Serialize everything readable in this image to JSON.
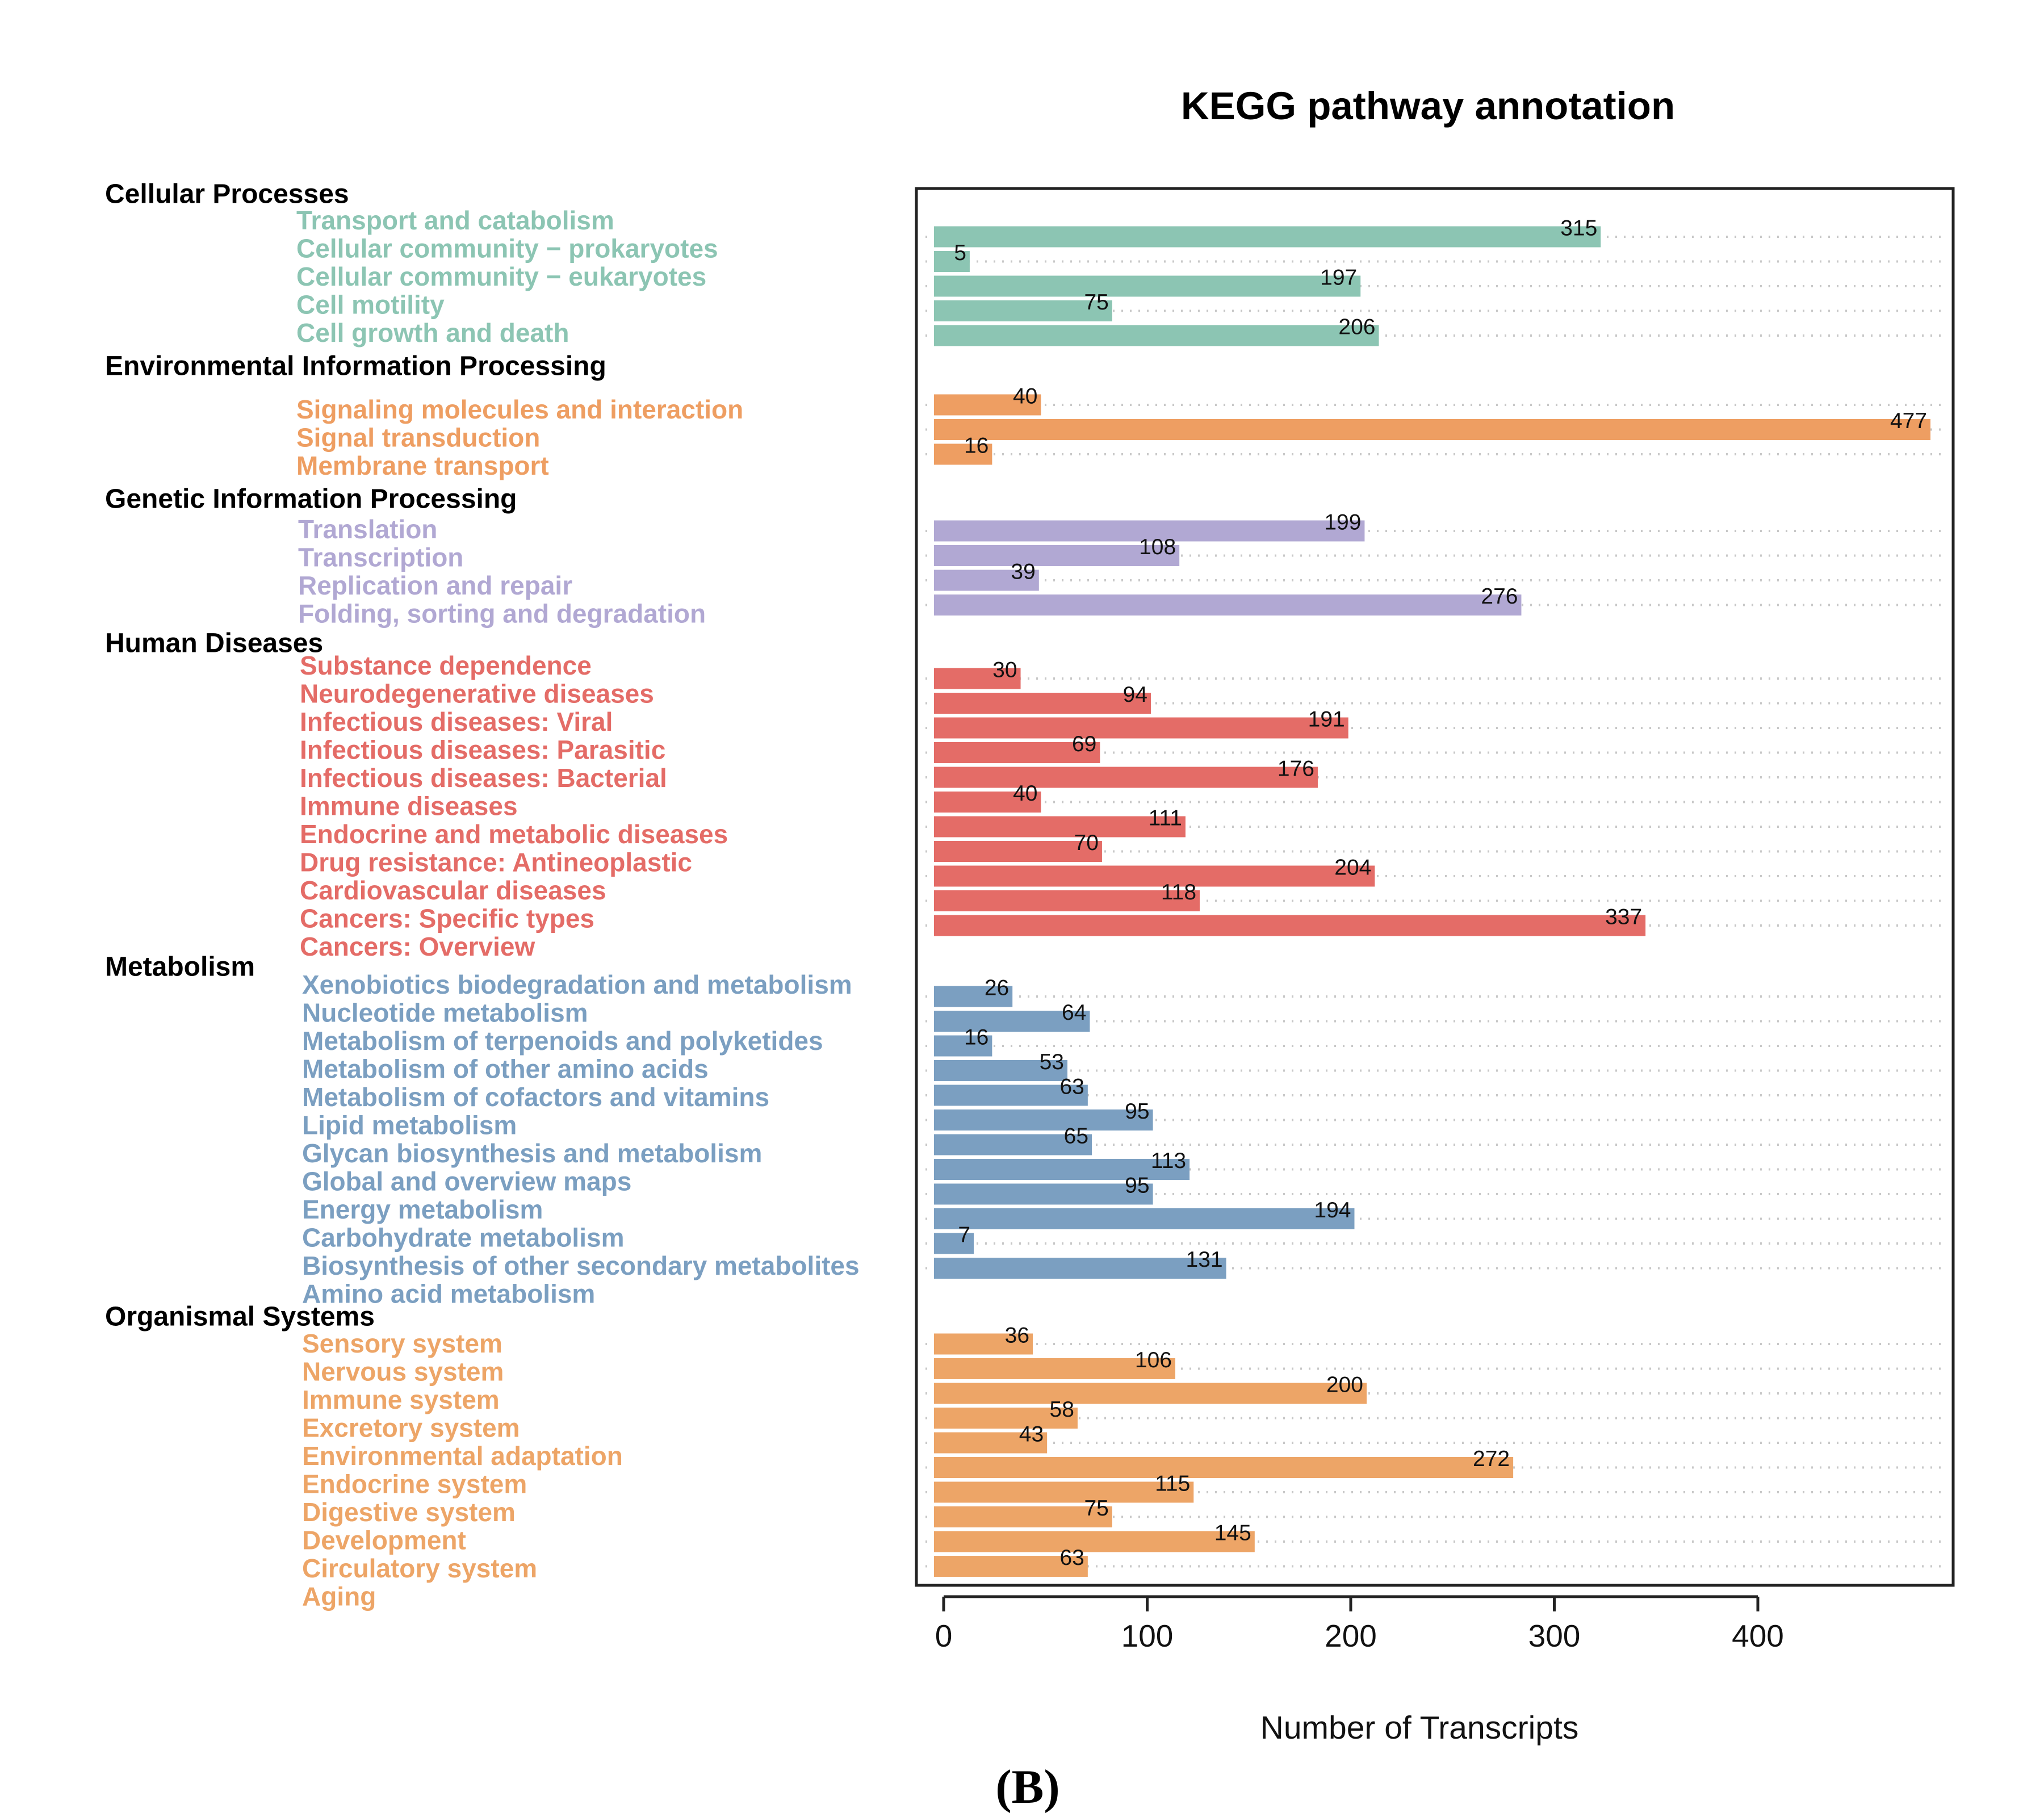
{
  "chart_data": {
    "type": "bar",
    "orientation": "horizontal",
    "title": "KEGG pathway annotation",
    "xlabel": "Number of Transcripts",
    "xlim": [
      0,
      480
    ],
    "xticks": [
      0,
      100,
      200,
      300,
      400
    ],
    "grid": "dotted horizontal",
    "caption": "(B)",
    "groups": [
      {
        "name": "Cellular Processes",
        "color": "#8cc5b3",
        "categories": [
          "Transport and catabolism",
          "Cellular community − prokaryotes",
          "Cellular community − eukaryotes",
          "Cell motility",
          "Cell growth and death"
        ],
        "values": [
          315,
          5,
          197,
          75,
          206
        ]
      },
      {
        "name": "Environmental Information Processing",
        "color": "#ee9e62",
        "categories": [
          "Signaling molecules and interaction",
          "Signal transduction",
          "Membrane transport"
        ],
        "values": [
          40,
          477,
          16
        ]
      },
      {
        "name": "Genetic Information Processing",
        "color": "#b1a8d3",
        "categories": [
          "Translation",
          "Transcription",
          "Replication and repair",
          "Folding, sorting and degradation"
        ],
        "values": [
          199,
          108,
          39,
          276
        ]
      },
      {
        "name": "Human Diseases",
        "color": "#e46c67",
        "categories": [
          "Substance dependence",
          "Neurodegenerative diseases",
          "Infectious diseases: Viral",
          "Infectious diseases: Parasitic",
          "Infectious diseases: Bacterial",
          "Immune diseases",
          "Endocrine and metabolic diseases",
          "Drug resistance: Antineoplastic",
          "Cardiovascular diseases",
          "Cancers: Specific types",
          "Cancers: Overview"
        ],
        "values": [
          30,
          94,
          191,
          69,
          176,
          40,
          111,
          70,
          204,
          118,
          337
        ]
      },
      {
        "name": "Metabolism",
        "color": "#7b9fc1",
        "categories": [
          "Xenobiotics biodegradation and metabolism",
          "Nucleotide metabolism",
          "Metabolism of terpenoids and polyketides",
          "Metabolism of other amino acids",
          "Metabolism of cofactors and vitamins",
          "Lipid metabolism",
          "Glycan biosynthesis and metabolism",
          "Global and overview maps",
          "Energy metabolism",
          "Carbohydrate metabolism",
          "Biosynthesis of other secondary metabolites",
          "Amino acid metabolism"
        ],
        "values": [
          26,
          64,
          16,
          53,
          63,
          95,
          65,
          113,
          95,
          194,
          7,
          131
        ]
      },
      {
        "name": "Organismal Systems",
        "color": "#eda567",
        "categories": [
          "Sensory system",
          "Nervous system",
          "Immune system",
          "Excretory system",
          "Environmental adaptation",
          "Endocrine system",
          "Digestive system",
          "Development",
          "Circulatory system",
          "Aging"
        ],
        "values": [
          36,
          106,
          200,
          58,
          43,
          272,
          115,
          75,
          145,
          63
        ]
      }
    ]
  }
}
